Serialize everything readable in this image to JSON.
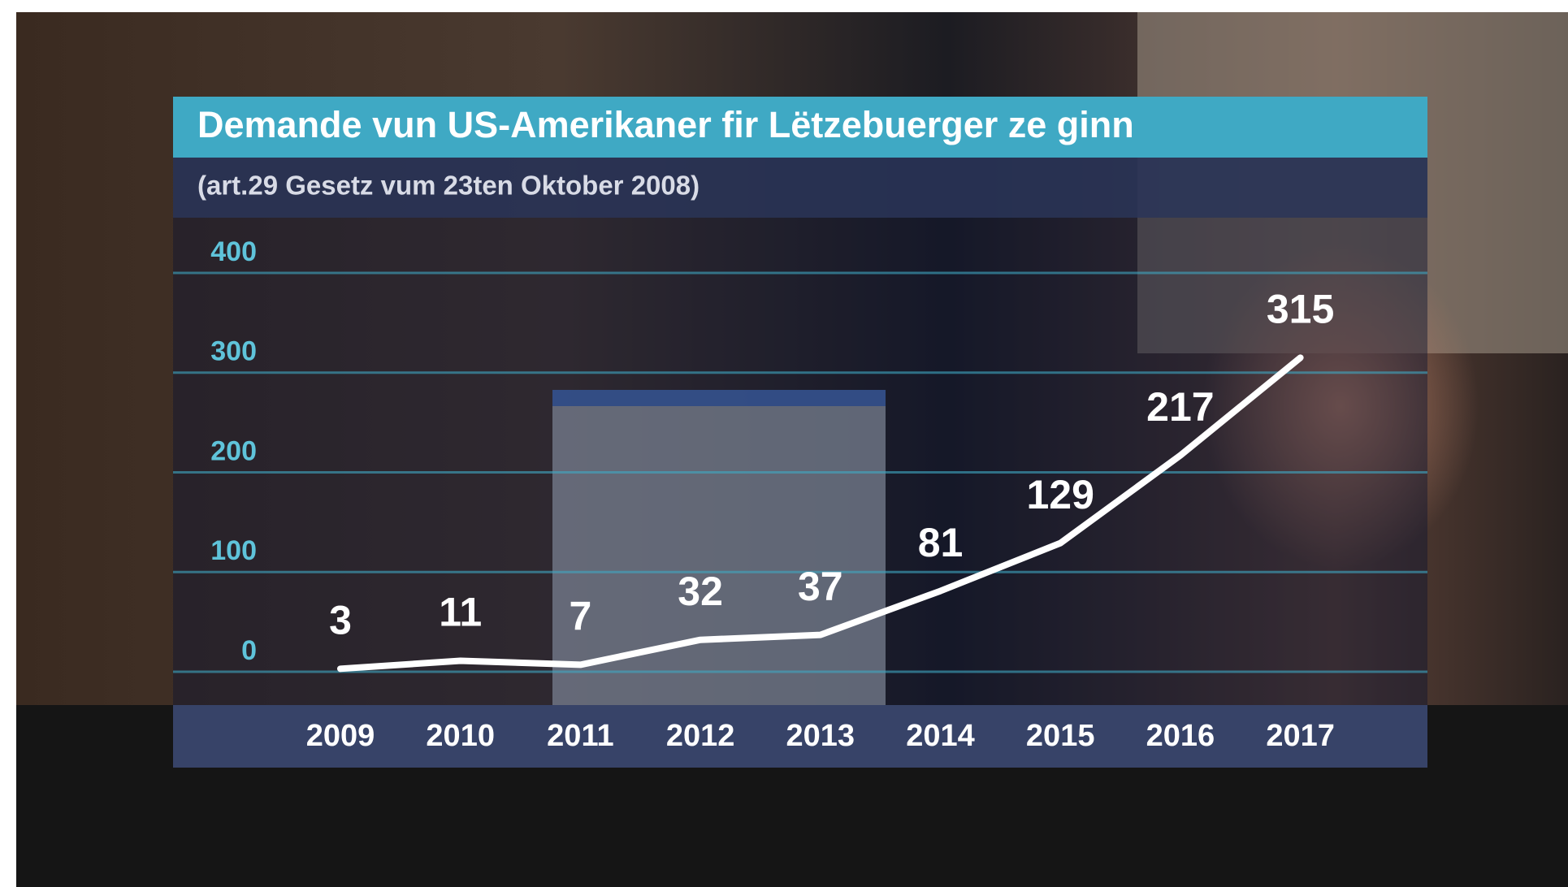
{
  "chart_data": {
    "type": "line",
    "title": "Demande vun US-Amerikaner fir Lëtzebuerger ze ginn",
    "subtitle": "(art.29 Gesetz vum 23ten Oktober 2008)",
    "categories": [
      "2009",
      "2010",
      "2011",
      "2012",
      "2013",
      "2014",
      "2015",
      "2016",
      "2017"
    ],
    "values": [
      3,
      11,
      7,
      32,
      37,
      81,
      129,
      217,
      315
    ],
    "color": "#ffffff",
    "ylim": [
      0,
      400
    ],
    "yticks": [
      0,
      100,
      200,
      300,
      400
    ],
    "grid": true
  }
}
